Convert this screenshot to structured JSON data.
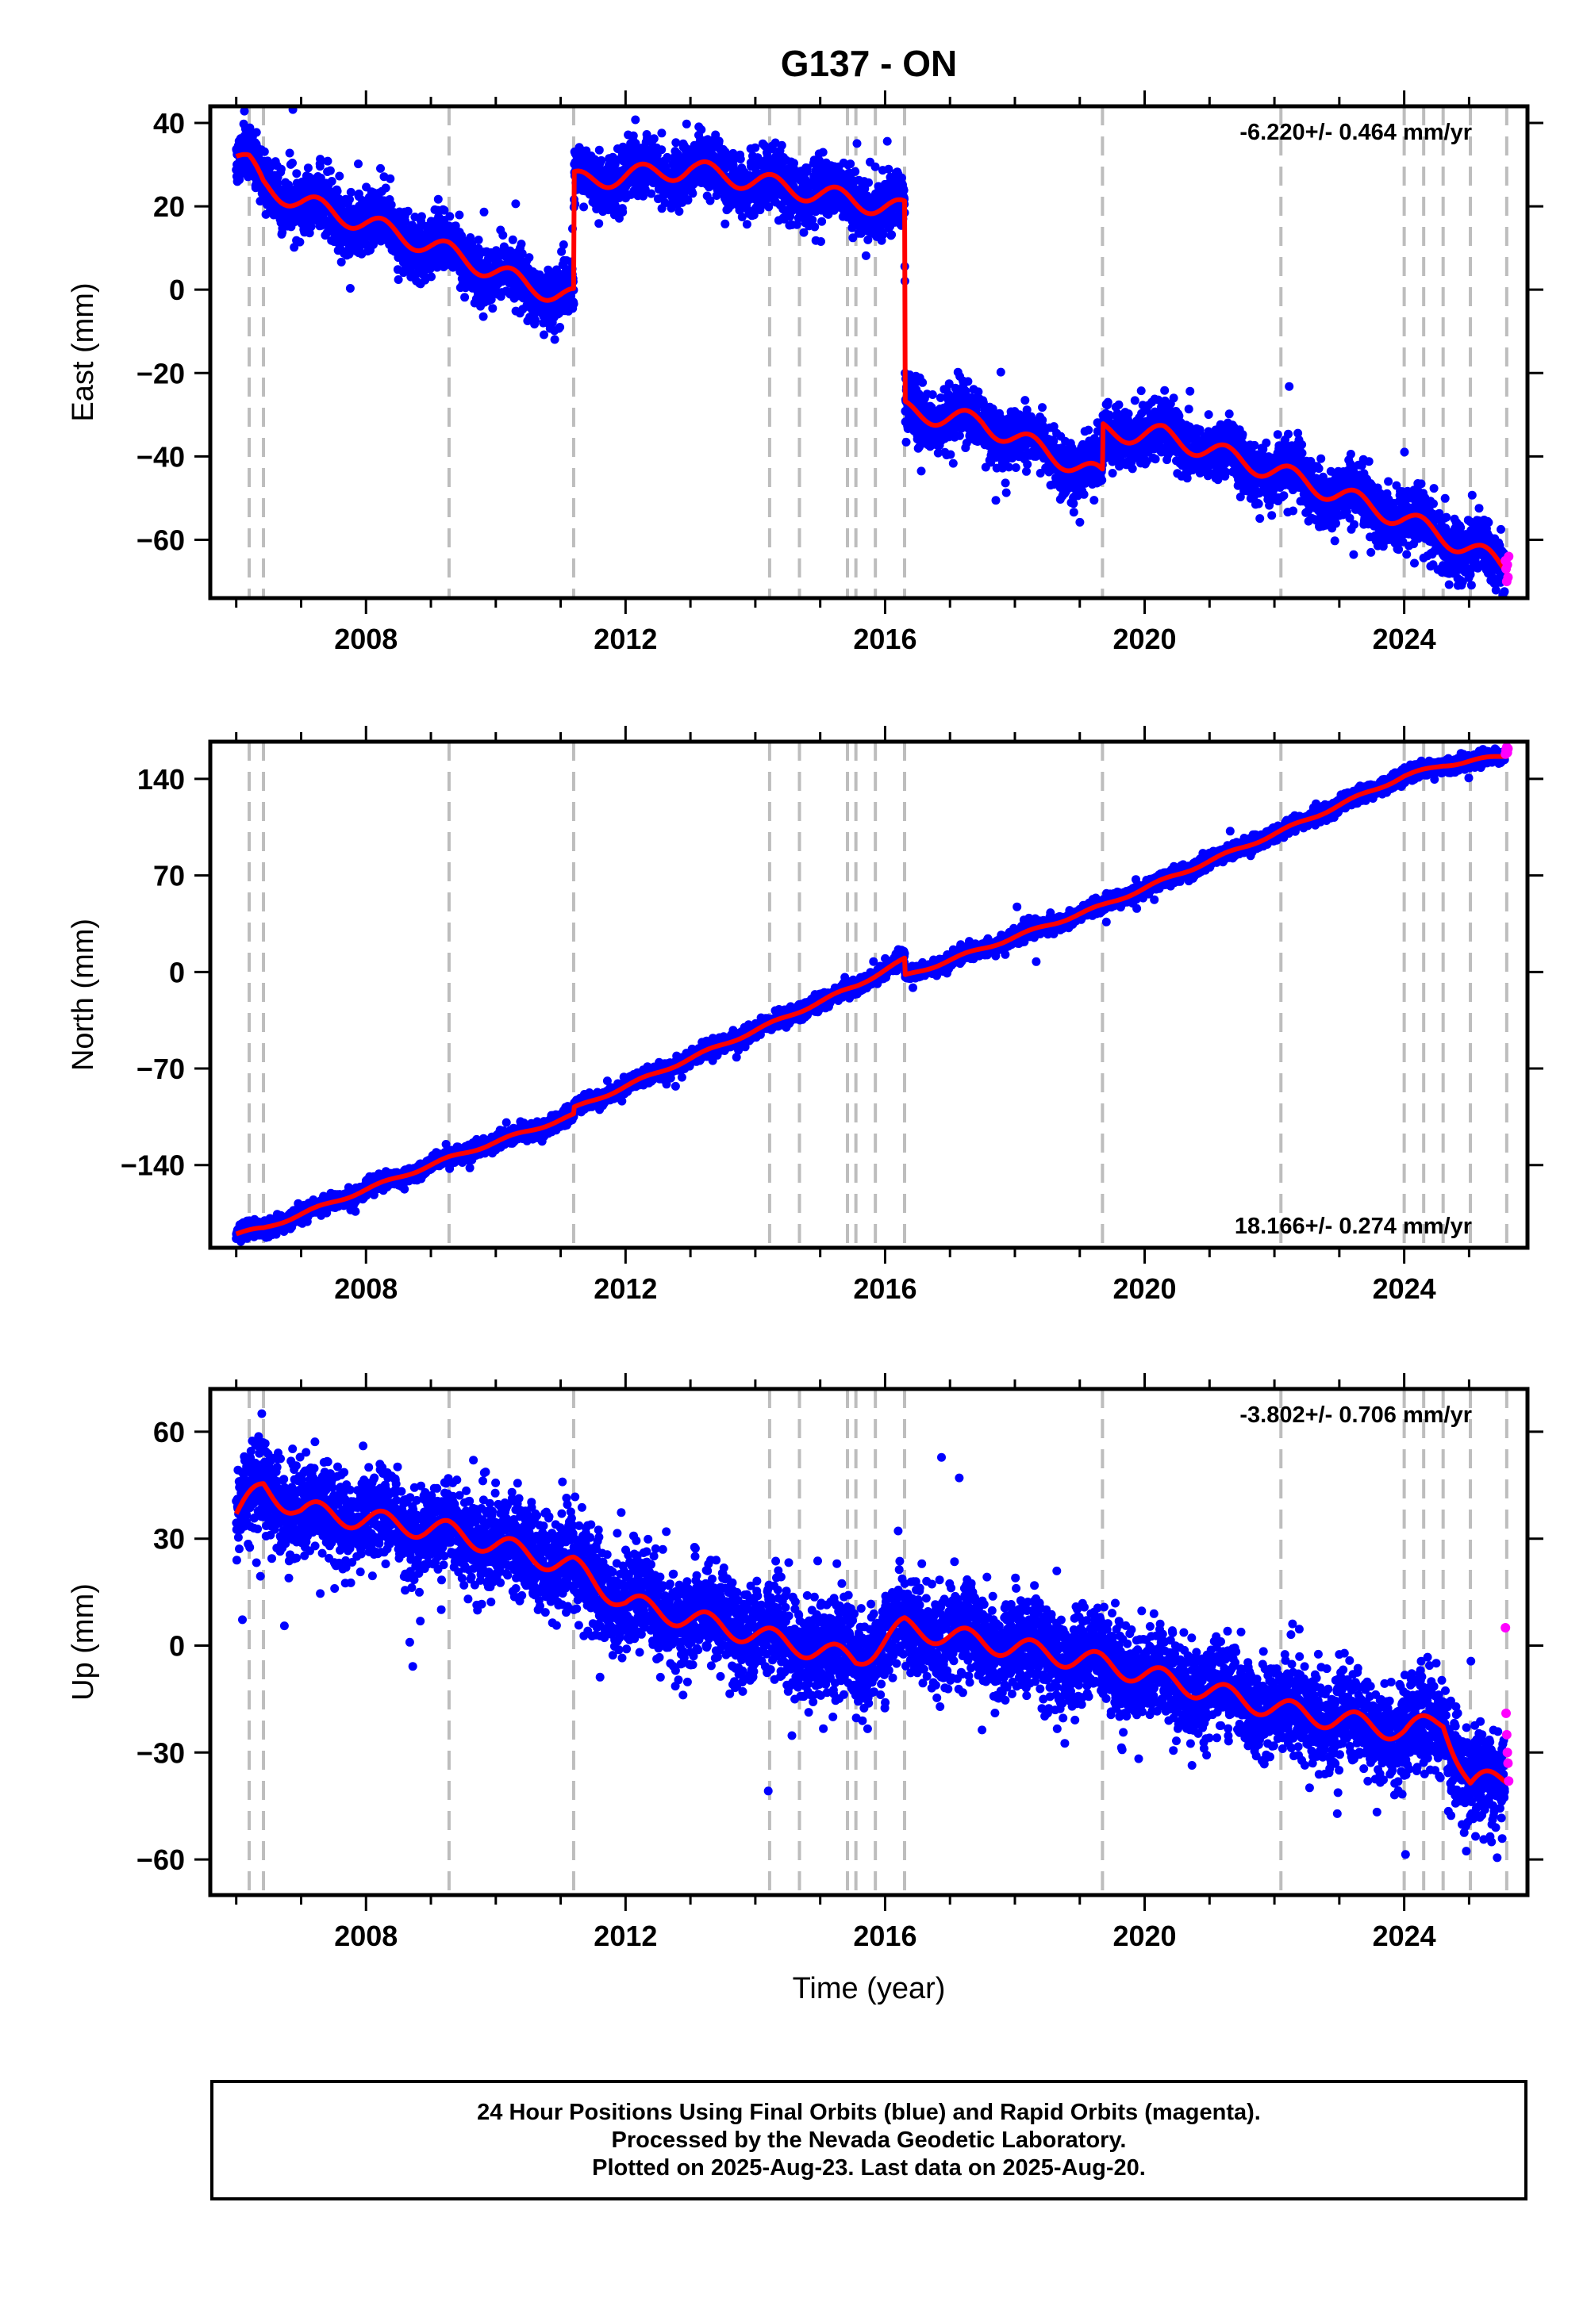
{
  "chart_data": [
    {
      "type": "scatter",
      "title": "G137 - ON",
      "ylabel": "East (mm)",
      "xlabel": "",
      "xlim": [
        2005.6,
        2025.9
      ],
      "ylim": [
        -74,
        44
      ],
      "yticks": [
        -60,
        -40,
        -20,
        0,
        20,
        40
      ],
      "xticks": [
        2008,
        2012,
        2016,
        2020,
        2024
      ],
      "rate_label": "-6.220+/- 0.464 mm/yr",
      "rate_position": "top-right",
      "grid": false,
      "offset_lines": [
        2006.2,
        2006.42,
        2009.28,
        2011.2,
        2014.22,
        2014.68,
        2015.42,
        2015.55,
        2015.85,
        2016.3,
        2019.35,
        2022.1,
        2024.0,
        2024.3,
        2024.6,
        2025.02,
        2025.58
      ],
      "series": [
        {
          "name": "Final Orbits",
          "color": "#0000ff",
          "marker": "dot",
          "noise": 3.4,
          "seed": 11,
          "start": 2006.0,
          "end": 2025.55
        },
        {
          "name": "Rapid Orbits",
          "color": "#ff00ff",
          "marker": "dot",
          "x": [
            2025.56,
            2025.57,
            2025.58,
            2025.59,
            2025.6,
            2025.61
          ],
          "y": [
            -65,
            -67,
            -70,
            -66,
            -69,
            -64
          ]
        },
        {
          "name": "Model",
          "color": "#ff0000",
          "line": true,
          "seasonal": 2.4,
          "x": [
            2006.0,
            2006.2,
            2006.42,
            2007.0,
            2008.0,
            2009.28,
            2010.5,
            2011.2,
            2011.21,
            2013.0,
            2016.3,
            2016.31,
            2017.5,
            2019.35,
            2019.36,
            2020.3,
            2022.1,
            2024.0,
            2025.0,
            2025.6
          ],
          "y": [
            32,
            30,
            25,
            21,
            16,
            9,
            1,
            -2,
            26,
            29,
            19,
            -29,
            -32,
            -45,
            -34,
            -35,
            -44,
            -55,
            -62,
            -67
          ]
        }
      ]
    },
    {
      "type": "scatter",
      "title": "",
      "ylabel": "North (mm)",
      "xlabel": "",
      "xlim": [
        2005.6,
        2025.9
      ],
      "ylim": [
        -200,
        167
      ],
      "yticks": [
        -140,
        -70,
        0,
        70,
        140
      ],
      "xticks": [
        2008,
        2012,
        2016,
        2020,
        2024
      ],
      "rate_label": "18.166+/- 0.274 mm/yr",
      "rate_position": "bottom-right",
      "grid": false,
      "offset_lines": [
        2006.2,
        2006.42,
        2009.28,
        2011.2,
        2014.22,
        2014.68,
        2015.42,
        2015.55,
        2015.85,
        2016.3,
        2019.35,
        2022.1,
        2024.0,
        2024.3,
        2024.6,
        2025.02,
        2025.58
      ],
      "series": [
        {
          "name": "Final Orbits",
          "color": "#0000ff",
          "marker": "dot",
          "noise": 2.6,
          "seed": 23,
          "start": 2006.0,
          "end": 2025.55
        },
        {
          "name": "Rapid Orbits",
          "color": "#ff00ff",
          "marker": "dot",
          "x": [
            2025.56,
            2025.57,
            2025.58,
            2025.59,
            2025.6
          ],
          "y": [
            158,
            161,
            163,
            159,
            162
          ]
        },
        {
          "name": "Model",
          "color": "#ff0000",
          "line": true,
          "seasonal": 1.2,
          "x": [
            2006.0,
            2006.42,
            2009.28,
            2011.2,
            2011.21,
            2014.22,
            2015.55,
            2016.3,
            2016.31,
            2019.35,
            2022.1,
            2024.0,
            2024.6,
            2025.6
          ],
          "y": [
            -190,
            -186,
            -135,
            -104,
            -99,
            -38,
            -10,
            9,
            -3,
            48,
            102,
            142,
            150,
            157
          ]
        }
      ]
    },
    {
      "type": "scatter",
      "title": "",
      "ylabel": "Up (mm)",
      "xlabel": "Time (year)",
      "xlim": [
        2005.6,
        2025.9
      ],
      "ylim": [
        -70,
        72
      ],
      "yticks": [
        -60,
        -30,
        0,
        30,
        60
      ],
      "xticks": [
        2008,
        2012,
        2016,
        2020,
        2024
      ],
      "rate_label": "-3.802+/- 0.706 mm/yr",
      "rate_position": "top-right",
      "grid": false,
      "offset_lines": [
        2006.2,
        2006.42,
        2009.28,
        2011.2,
        2014.22,
        2014.68,
        2015.42,
        2015.55,
        2015.85,
        2016.3,
        2019.35,
        2022.1,
        2024.0,
        2024.3,
        2024.6,
        2025.02,
        2025.58
      ],
      "series": [
        {
          "name": "Final Orbits",
          "color": "#0000ff",
          "marker": "dot",
          "noise": 6.5,
          "seed": 37,
          "start": 2006.0,
          "end": 2025.55
        },
        {
          "name": "Rapid Orbits",
          "color": "#ff00ff",
          "marker": "dot",
          "x": [
            2025.56,
            2025.57,
            2025.58,
            2025.59,
            2025.6,
            2025.61
          ],
          "y": [
            5,
            -19,
            -25,
            -30,
            -33,
            -38
          ]
        },
        {
          "name": "Model",
          "color": "#ff0000",
          "line": true,
          "seasonal": 3.0,
          "x": [
            2006.0,
            2006.42,
            2007.0,
            2009.28,
            2011.2,
            2012.0,
            2014.22,
            2015.55,
            2016.3,
            2019.35,
            2022.1,
            2024.0,
            2024.6,
            2025.02,
            2025.6
          ],
          "y": [
            37,
            44,
            38,
            32,
            22,
            12,
            2,
            -4,
            5,
            -5,
            -18,
            -24,
            -21,
            -39,
            -37
          ]
        }
      ]
    }
  ],
  "caption": {
    "line1": "24 Hour Positions Using Final Orbits (blue) and Rapid Orbits (magenta).",
    "line2": "Processed by the Nevada Geodetic Laboratory.",
    "line3": "Plotted on 2025-Aug-23. Last data on 2025-Aug-20."
  }
}
